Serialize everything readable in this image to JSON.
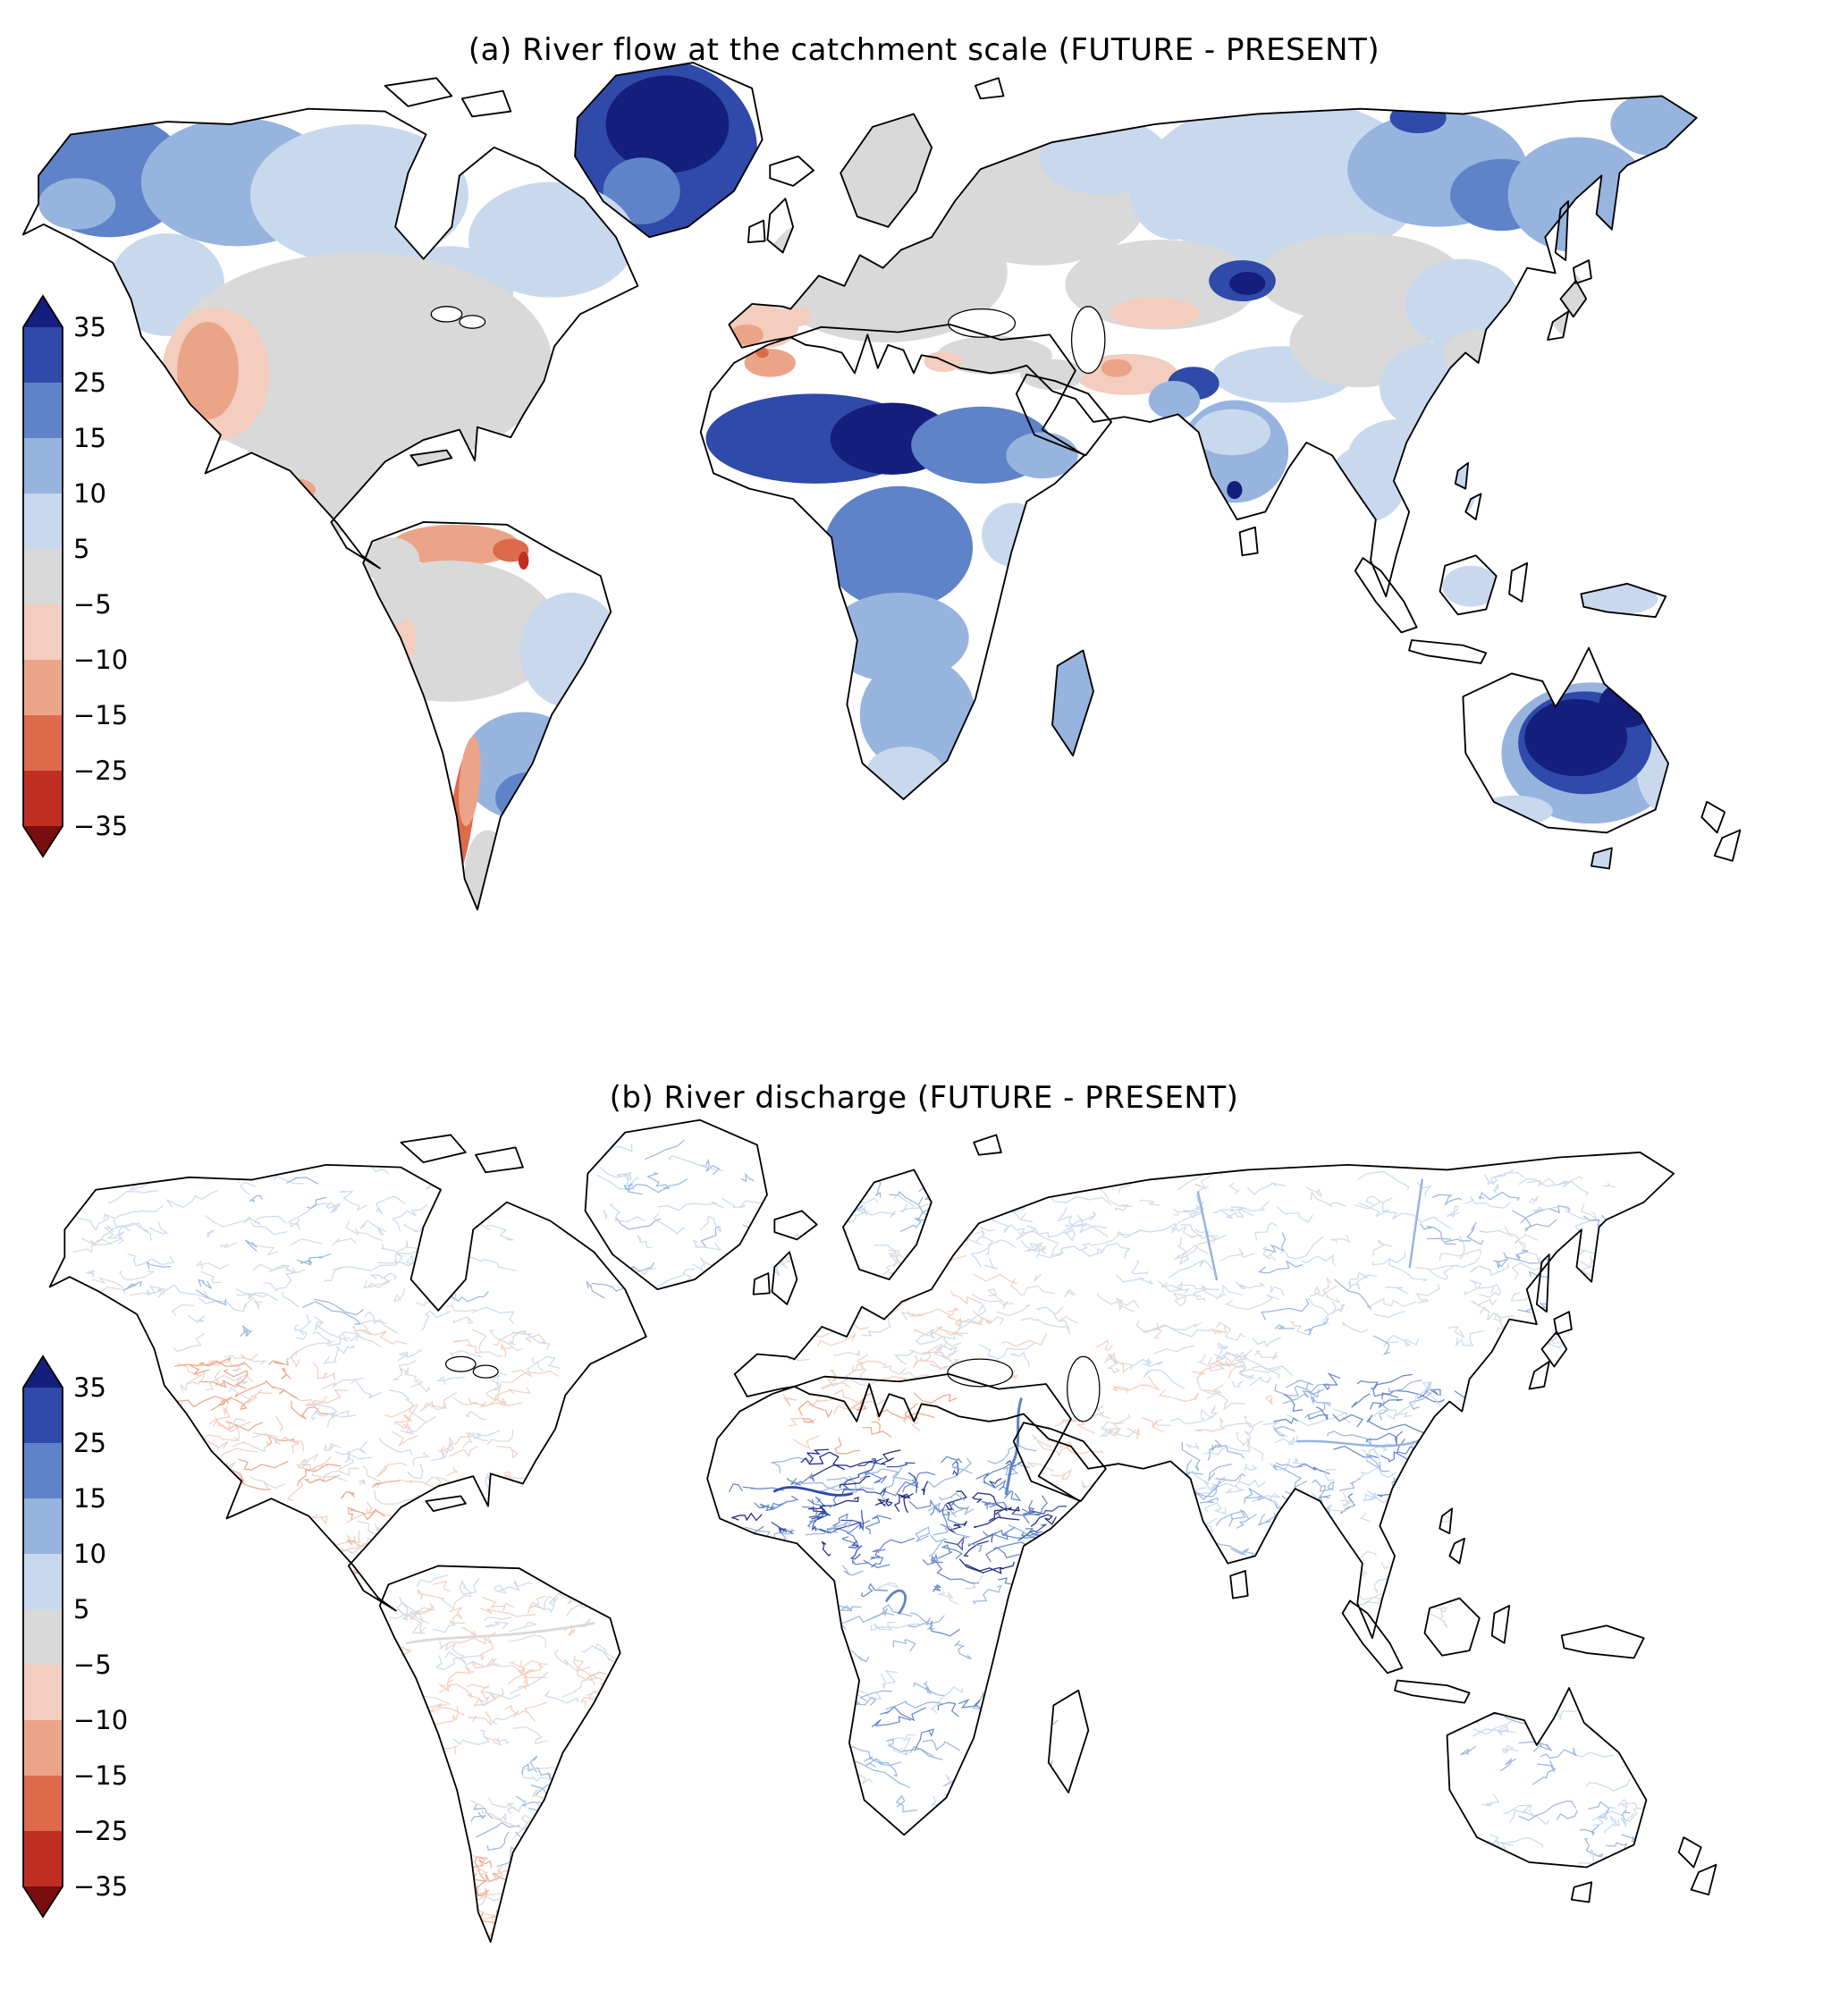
{
  "page": {
    "background": "#ffffff"
  },
  "panels": [
    {
      "id": "a",
      "title": "(a) River flow at the catchment scale (FUTURE - PRESENT)"
    },
    {
      "id": "b",
      "title": "(b) River discharge (FUTURE - PRESENT)"
    }
  ],
  "colorbar": {
    "tick_labels": [
      "35",
      "25",
      "15",
      "10",
      "5",
      "−5",
      "−10",
      "−15",
      "−25",
      "−35"
    ],
    "segment_colors_top_to_bottom": [
      "#2f4aa8",
      "#5f83c9",
      "#97b4de",
      "#c8d9ee",
      "#d9d9d9",
      "#f3cdbd",
      "#eca488",
      "#de6a4c",
      "#bf2f21"
    ],
    "arrow_top_color": "#141e7c",
    "arrow_bottom_color": "#7a0d10",
    "outline_color": "#000000"
  },
  "palette": {
    "pos4": "#141e7c",
    "pos3": "#2f4aa8",
    "pos2": "#5f83c9",
    "pos1b": "#97b4de",
    "pos1a": "#c8d9ee",
    "neutral": "#d9d9d9",
    "neg1a": "#f3cdbd",
    "neg1b": "#eca488",
    "neg2": "#de6a4c",
    "neg3": "#bf2f21",
    "neg4": "#7a0d10",
    "land_fill": "#ffffff",
    "land_outline": "#000000"
  },
  "chart_data": [
    {
      "type": "heatmap",
      "subtype": "choropleth-world-map",
      "title": "(a) River flow at the catchment scale (FUTURE - PRESENT)",
      "colorbar": {
        "boundaries": [
          35,
          25,
          15,
          10,
          5,
          -5,
          -10,
          -15,
          -25,
          -35
        ],
        "extend": "both",
        "orientation": "vertical",
        "position": "left"
      },
      "regions": [
        {
          "region": "Greenland",
          "value_bin": "> 35"
        },
        {
          "region": "Alaska and northwest Canada",
          "value_bin": "15 to 25"
        },
        {
          "region": "Northern Canada",
          "value_bin": "5 to 15"
        },
        {
          "region": "Central United States",
          "value_bin": "-5 to 5"
        },
        {
          "region": "Western United States (Great Basin)",
          "value_bin": "-15 to -10"
        },
        {
          "region": "Mexico",
          "value_bin": "-5 to 5"
        },
        {
          "region": "Venezuela and Guyanas",
          "value_bin": "-25 to -10"
        },
        {
          "region": "Amazon basin",
          "value_bin": "-5 to 5"
        },
        {
          "region": "Eastern Brazil",
          "value_bin": "5 to 10"
        },
        {
          "region": "La Plata basin (southeastern South America)",
          "value_bin": "10 to 35"
        },
        {
          "region": "Central Chile",
          "value_bin": "-25 to -15"
        },
        {
          "region": "Patagonia",
          "value_bin": "-5 to 5"
        },
        {
          "region": "Western and central Europe",
          "value_bin": "-5 to 5"
        },
        {
          "region": "Iberian Peninsula",
          "value_bin": "-10 to -5"
        },
        {
          "region": "Morocco",
          "value_bin": "-15 to -10"
        },
        {
          "region": "Sahel",
          "value_bin": "25 to 35"
        },
        {
          "region": "Lake Chad region",
          "value_bin": "> 35"
        },
        {
          "region": "Congo basin",
          "value_bin": "15 to 25"
        },
        {
          "region": "Southern Africa",
          "value_bin": "10 to 15"
        },
        {
          "region": "Sahara",
          "value_bin": "no data"
        },
        {
          "region": "Arabian Peninsula",
          "value_bin": "no data"
        },
        {
          "region": "Middle East (Iran region)",
          "value_bin": "-10 to -5"
        },
        {
          "region": "Western Russia",
          "value_bin": "-5 to 5"
        },
        {
          "region": "Siberia",
          "value_bin": "10 to 25"
        },
        {
          "region": "Lake Balkhash region (Central Asia)",
          "value_bin": "> 35"
        },
        {
          "region": "Northwestern India",
          "value_bin": "25 to 35"
        },
        {
          "region": "India",
          "value_bin": "5 to 15"
        },
        {
          "region": "Southern India (spot)",
          "value_bin": "> 35"
        },
        {
          "region": "China",
          "value_bin": "-5 to 10"
        },
        {
          "region": "Southeast Asia",
          "value_bin": "5 to 10"
        },
        {
          "region": "Central and eastern Australia",
          "value_bin": "> 35"
        },
        {
          "region": "Eastern Australia coast",
          "value_bin": "10 to 25"
        },
        {
          "region": "Western Australia",
          "value_bin": "no data"
        }
      ]
    },
    {
      "type": "heatmap",
      "subtype": "river-network-world-map",
      "title": "(b) River discharge (FUTURE - PRESENT)",
      "colorbar": {
        "boundaries": [
          35,
          25,
          15,
          10,
          5,
          -5,
          -10,
          -15,
          -25,
          -35
        ],
        "extend": "both",
        "orientation": "vertical",
        "position": "left"
      },
      "regions": [
        {
          "region": "High-latitude North American rivers",
          "value_bin": "5 to 15"
        },
        {
          "region": "Western United States rivers",
          "value_bin": "-15 to -5"
        },
        {
          "region": "Eastern United States rivers",
          "value_bin": "-5 to 5"
        },
        {
          "region": "Amazon tributaries",
          "value_bin": "-10 to 5"
        },
        {
          "region": "Southeastern South America rivers",
          "value_bin": "5 to 15"
        },
        {
          "region": "Southern Chile and Patagonia rivers",
          "value_bin": "-15 to -5"
        },
        {
          "region": "European rivers",
          "value_bin": "-10 to 5"
        },
        {
          "region": "Sahel and West African rivers (Niger, Senegal)",
          "value_bin": "15 to > 35"
        },
        {
          "region": "Nile",
          "value_bin": "15 to 25"
        },
        {
          "region": "Congo and southern African rivers",
          "value_bin": "5 to 15"
        },
        {
          "region": "Siberian rivers",
          "value_bin": "5 to 15"
        },
        {
          "region": "Central Asian rivers",
          "value_bin": "-10 to 5"
        },
        {
          "region": "Tibetan Plateau and Chinese rivers",
          "value_bin": "10 to 25"
        },
        {
          "region": "Indian rivers",
          "value_bin": "5 to 15"
        },
        {
          "region": "Australian rivers",
          "value_bin": "5 to 15"
        }
      ]
    }
  ]
}
